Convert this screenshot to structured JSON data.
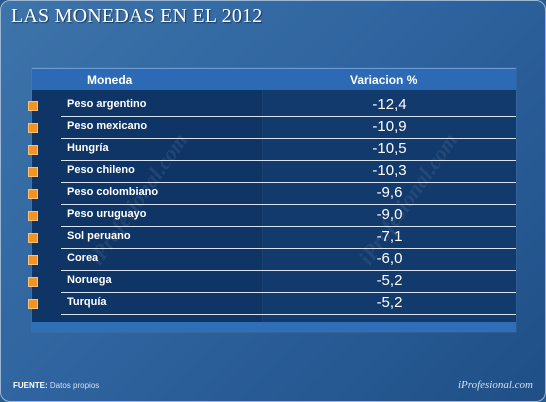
{
  "title": "LAS MONEDAS EN EL 2012",
  "table": {
    "headers": {
      "currency": "Moneda",
      "change": "Variacion %"
    }
  },
  "chart_data": {
    "type": "table",
    "columns": [
      "Moneda",
      "Variacion %"
    ],
    "rows": [
      {
        "currency": "Peso argentino",
        "value": "-12,4"
      },
      {
        "currency": "Peso mexicano",
        "value": "-10,9"
      },
      {
        "currency": "Hungría",
        "value": "-10,5"
      },
      {
        "currency": "Peso chileno",
        "value": "-10,3"
      },
      {
        "currency": "Peso colombiano",
        "value": "-9,6"
      },
      {
        "currency": "Peso uruguayo",
        "value": "-9,0"
      },
      {
        "currency": "Sol peruano",
        "value": "-7,1"
      },
      {
        "currency": "Corea",
        "value": "-6,0"
      },
      {
        "currency": "Noruega",
        "value": "-5,2"
      },
      {
        "currency": "Turquía",
        "value": "-5,2"
      }
    ]
  },
  "footer": {
    "source_label": "FUENTE:",
    "source_text": "Datos propios",
    "brand": "iProfesional.com"
  },
  "watermark": "iProfesional.com",
  "colors": {
    "background": "#2f64a0",
    "header": "#2d6ab5",
    "table": "#0f3566",
    "bullet": "#f39422"
  }
}
